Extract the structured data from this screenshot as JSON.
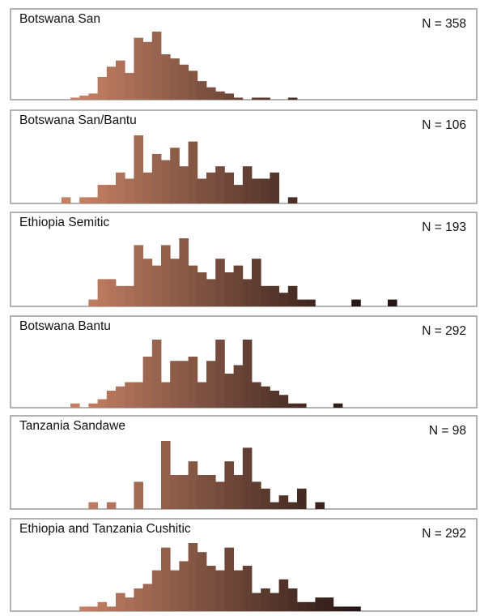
{
  "chart_data": [
    {
      "type": "bar",
      "title": "Botswana San",
      "annotation": "N = 358",
      "values": [
        0,
        0,
        0,
        0,
        0,
        1,
        2,
        3,
        11,
        16,
        19,
        13,
        30,
        28,
        33,
        22,
        20,
        17,
        14,
        9,
        6,
        4,
        3,
        1,
        0,
        1,
        1,
        0,
        0,
        1,
        0,
        0,
        0,
        0,
        0,
        0,
        0,
        0,
        0,
        0,
        0,
        0,
        0,
        0,
        0,
        0,
        0,
        0,
        0,
        0,
        0
      ]
    },
    {
      "type": "bar",
      "title": "Botswana San/Bantu",
      "annotation": "N = 106",
      "values": [
        0,
        0,
        0,
        0,
        1,
        0,
        1,
        1,
        3,
        3,
        5,
        4,
        11,
        5,
        8,
        7,
        9,
        6,
        10,
        4,
        5,
        6,
        5,
        3,
        6,
        4,
        4,
        5,
        0,
        1,
        0,
        0,
        0,
        0,
        0,
        0,
        0,
        0,
        0,
        0,
        0,
        0,
        0,
        0,
        0,
        0,
        0,
        0,
        0,
        0,
        0
      ]
    },
    {
      "type": "bar",
      "title": "Ethiopia Semitic",
      "annotation": "N = 193",
      "values": [
        0,
        0,
        0,
        0,
        0,
        0,
        0,
        1,
        4,
        4,
        3,
        3,
        9,
        7,
        6,
        9,
        7,
        10,
        6,
        5,
        4,
        7,
        5,
        6,
        4,
        7,
        3,
        3,
        2,
        3,
        1,
        1,
        0,
        0,
        0,
        0,
        1,
        0,
        0,
        0,
        1,
        0,
        0,
        0,
        0,
        0,
        0,
        0,
        0,
        0,
        0
      ]
    },
    {
      "type": "bar",
      "title": "Botswana Bantu",
      "annotation": "N = 292",
      "values": [
        0,
        0,
        0,
        0,
        0,
        1,
        0,
        1,
        2,
        4,
        5,
        6,
        6,
        12,
        16,
        6,
        11,
        11,
        12,
        6,
        11,
        16,
        8,
        10,
        16,
        6,
        5,
        4,
        3,
        1,
        1,
        0,
        0,
        0,
        1,
        0,
        0,
        0,
        0,
        0,
        0,
        0,
        0,
        0,
        0,
        0,
        0,
        0,
        0,
        0,
        0
      ]
    },
    {
      "type": "bar",
      "title": "Tanzania Sandawe",
      "annotation": "N = 98",
      "values": [
        0,
        0,
        0,
        0,
        0,
        0,
        0,
        1,
        0,
        1,
        0,
        0,
        4,
        0,
        0,
        10,
        5,
        5,
        7,
        5,
        5,
        4,
        7,
        5,
        9,
        4,
        3,
        1,
        2,
        1,
        3,
        0,
        1,
        0,
        0,
        0,
        0,
        0,
        0,
        0,
        0,
        0,
        0,
        0,
        0,
        0,
        0,
        0,
        0,
        0,
        0
      ]
    },
    {
      "type": "bar",
      "title": "Ethiopia and Tanzania Cushitic",
      "annotation": "N = 292",
      "values": [
        0,
        0,
        0,
        0,
        0,
        0,
        1,
        1,
        2,
        1,
        4,
        3,
        5,
        6,
        9,
        14,
        9,
        11,
        15,
        13,
        10,
        9,
        14,
        9,
        10,
        4,
        5,
        4,
        7,
        5,
        2,
        2,
        3,
        3,
        1,
        1,
        1,
        0,
        0,
        0,
        0,
        0,
        0,
        0,
        0,
        0,
        0,
        0,
        0,
        0,
        0
      ]
    }
  ]
}
